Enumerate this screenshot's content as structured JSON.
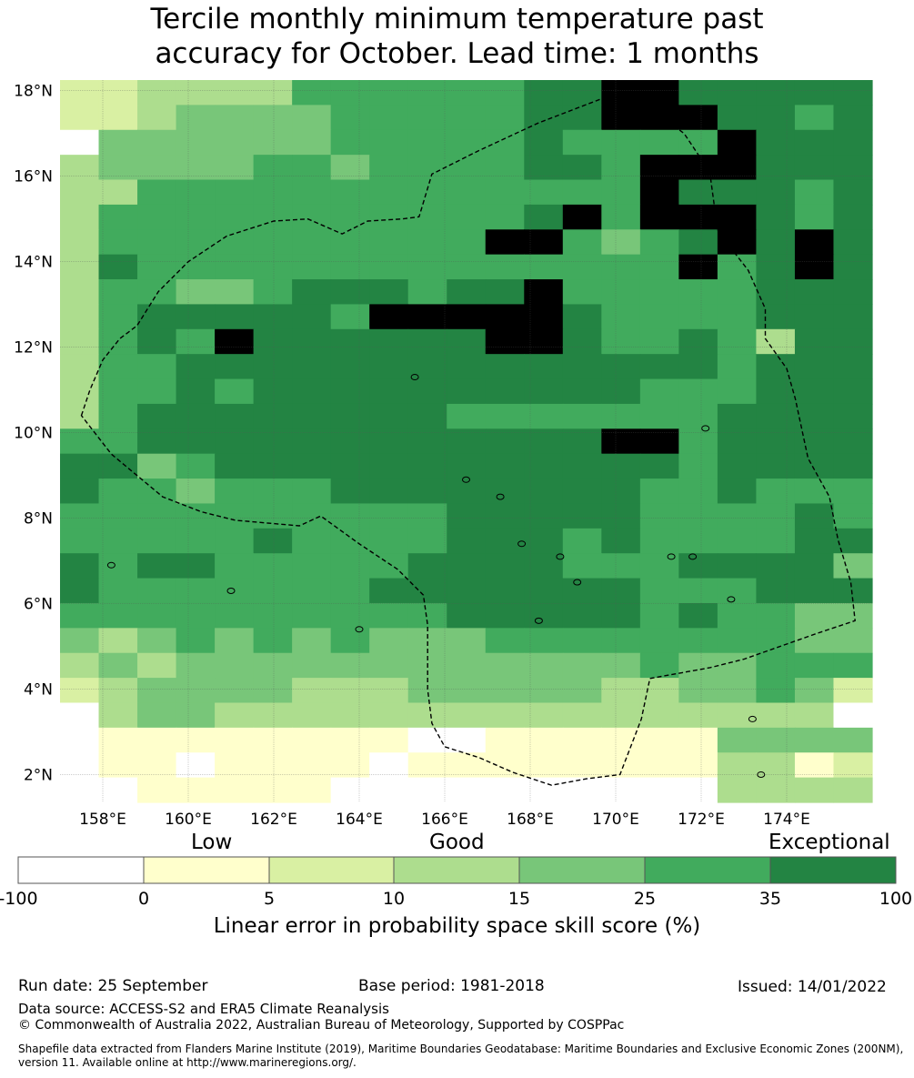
{
  "title_line1": "Tercile monthly minimum temperature past",
  "title_line2": "accuracy for October. Lead time: 1 months",
  "map": {
    "lat_range": [
      1.35,
      18.25
    ],
    "lon_range": [
      157.0,
      176.0
    ],
    "lat_ticks": [
      "2°N",
      "4°N",
      "6°N",
      "8°N",
      "10°N",
      "12°N",
      "14°N",
      "16°N",
      "18°N"
    ],
    "lon_ticks": [
      "158°E",
      "160°E",
      "162°E",
      "164°E",
      "166°E",
      "168°E",
      "170°E",
      "172°E",
      "174°E"
    ],
    "cell_size_deg": 0.835,
    "grid_rows_north_to_south": [
      "223333555555667766666",
      "223444455555667776656",
      "044444455555655557666",
      "344445545555665777666",
      "335555555555555766656",
      "355555555555675777656",
      "355555555557754567676",
      "365555555555555575676",
      "355445666566755555666",
      "356666657777765555666",
      "356576666667765565366",
      "355666666666666665666",
      "355656666666666555666",
      "356666666655555556666",
      "556666666666667756666",
      "664566666666666656666",
      "655455566666666556555",
      "555555555566666555565",
      "555556555566656555566",
      "656655555666655566664",
      "655555556666666555666",
      "555555555566666565544",
      "434545454445555555544",
      "343444444444444544555",
      "234444333444443344542",
      "034433333333333333330",
      "011111111001111114444",
      "011011110111111113312",
      "001111100000000003333"
    ],
    "eez_boundary_lonlat": [
      [
        157.5,
        10.4
      ],
      [
        157.7,
        11.0
      ],
      [
        158.0,
        11.7
      ],
      [
        158.4,
        12.2
      ],
      [
        158.8,
        12.5
      ],
      [
        159.3,
        13.3
      ],
      [
        160.0,
        14.0
      ],
      [
        160.9,
        14.6
      ],
      [
        162.0,
        14.95
      ],
      [
        162.8,
        15.0
      ],
      [
        163.6,
        14.65
      ],
      [
        164.2,
        14.95
      ],
      [
        165.0,
        15.0
      ],
      [
        165.4,
        15.05
      ],
      [
        165.7,
        16.05
      ],
      [
        166.8,
        16.6
      ],
      [
        168.2,
        17.25
      ],
      [
        169.9,
        17.9
      ],
      [
        170.8,
        17.6
      ],
      [
        171.6,
        17.0
      ],
      [
        172.2,
        16.1
      ],
      [
        172.35,
        15.0
      ],
      [
        172.4,
        14.7
      ],
      [
        173.1,
        13.8
      ],
      [
        173.5,
        12.9
      ],
      [
        173.5,
        12.2
      ],
      [
        174.0,
        11.5
      ],
      [
        174.2,
        10.8
      ],
      [
        174.5,
        9.4
      ],
      [
        175.0,
        8.5
      ],
      [
        175.2,
        7.5
      ],
      [
        175.5,
        6.5
      ],
      [
        175.6,
        5.6
      ],
      [
        174.7,
        5.3
      ],
      [
        173.0,
        4.7
      ],
      [
        172.2,
        4.5
      ],
      [
        170.8,
        4.25
      ],
      [
        170.6,
        3.3
      ],
      [
        170.1,
        2.0
      ],
      [
        169.3,
        1.9
      ],
      [
        168.5,
        1.75
      ],
      [
        167.6,
        2.05
      ],
      [
        166.8,
        2.4
      ],
      [
        166.0,
        2.65
      ],
      [
        165.7,
        3.2
      ],
      [
        165.6,
        4.0
      ],
      [
        165.6,
        5.5
      ],
      [
        165.5,
        6.2
      ],
      [
        164.9,
        6.8
      ],
      [
        164.0,
        7.4
      ],
      [
        163.1,
        8.05
      ],
      [
        162.6,
        7.82
      ],
      [
        161.1,
        7.95
      ],
      [
        160.3,
        8.15
      ],
      [
        159.4,
        8.5
      ],
      [
        158.8,
        9.0
      ],
      [
        158.2,
        9.5
      ],
      [
        157.5,
        10.4
      ]
    ]
  },
  "colorbar": {
    "category_labels": [
      "Low",
      "Good",
      "Exceptional"
    ],
    "ticks": [
      "-100",
      "0",
      "5",
      "10",
      "15",
      "25",
      "35",
      "100"
    ],
    "colors": [
      "#ffffff",
      "#ffffcc",
      "#d9f0a3",
      "#addd8e",
      "#78c679",
      "#41ab5d",
      "#238443"
    ],
    "title": "Linear error in probability space skill score (%)"
  },
  "footer": {
    "run_date": "Run date: 25 September",
    "base_period": "Base period: 1981-2018",
    "issued": "Issued: 14/01/2022",
    "data_source": "Data source: ACCESS-S2 and ERA5 Climate Reanalysis",
    "copyright": "© Commonwealth of Australia 2022, Australian Bureau of Meteorology, Supported by COSPPac",
    "shapefile": "Shapefile data extracted from Flanders Marine Institute (2019), Maritime Boundaries Geodatabase: Maritime Boundaries and Exclusive Economic Zones (200NM), version 11. Available online at http://www.marineregions.org/."
  }
}
